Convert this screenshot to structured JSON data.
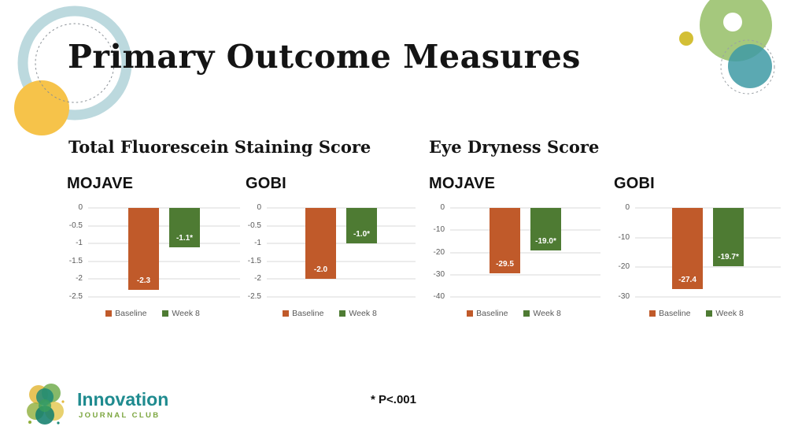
{
  "slide": {
    "title": "Primary Outcome Measures",
    "footnote": "* P<.001"
  },
  "sections": {
    "left_heading": "Total Fluorescein Staining Score",
    "right_heading": "Eye Dryness Score"
  },
  "logo": {
    "name": "Innovation",
    "tagline": "JOURNAL CLUB",
    "name_color": "#1f8b8f",
    "tagline_color": "#7ca63f"
  },
  "colors": {
    "series": [
      "#c05a2a",
      "#4e7b33"
    ],
    "gridline": "#d9d9d9",
    "axis_text": "#595959",
    "decor_ring_blue": "#bcd9de",
    "decor_yellow": "#f6c34a",
    "decor_green": "#a5c87d",
    "decor_teal": "#3e9aa5",
    "decor_olive": "#d3bf35"
  },
  "chart_data": [
    {
      "type": "bar",
      "title": "MOJAVE",
      "section": "Total Fluorescein Staining Score",
      "categories": [
        "Baseline",
        "Week 8"
      ],
      "values": [
        -2.3,
        -1.1
      ],
      "value_labels": [
        "-2.3",
        "-1.1*"
      ],
      "ylim": [
        -2.5,
        0
      ],
      "yticks": [
        0,
        -0.5,
        -1,
        -1.5,
        -2,
        -2.5
      ],
      "ytick_labels": [
        "0",
        "-0.5",
        "-1",
        "-1.5",
        "-2",
        "-2.5"
      ],
      "legend": [
        "Baseline",
        "Week 8"
      ],
      "legend_position": "bottom",
      "grid": true
    },
    {
      "type": "bar",
      "title": "GOBI",
      "section": "Total Fluorescein Staining Score",
      "categories": [
        "Baseline",
        "Week 8"
      ],
      "values": [
        -2.0,
        -1.0
      ],
      "value_labels": [
        "-2.0",
        "-1.0*"
      ],
      "ylim": [
        -2.5,
        0
      ],
      "yticks": [
        0,
        -0.5,
        -1,
        -1.5,
        -2,
        -2.5
      ],
      "ytick_labels": [
        "0",
        "-0.5",
        "-1",
        "-1.5",
        "-2",
        "-2.5"
      ],
      "legend": [
        "Baseline",
        "Week 8"
      ],
      "legend_position": "bottom",
      "grid": true
    },
    {
      "type": "bar",
      "title": "MOJAVE",
      "section": "Eye Dryness Score",
      "categories": [
        "Baseline",
        "Week 8"
      ],
      "values": [
        -29.5,
        -19.0
      ],
      "value_labels": [
        "-29.5",
        "-19.0*"
      ],
      "ylim": [
        -40,
        0
      ],
      "yticks": [
        0,
        -10,
        -20,
        -30,
        -40
      ],
      "ytick_labels": [
        "0",
        "-10",
        "-20",
        "-30",
        "-40"
      ],
      "legend": [
        "Baseline",
        "Week 8"
      ],
      "legend_position": "bottom",
      "grid": true
    },
    {
      "type": "bar",
      "title": "GOBI",
      "section": "Eye Dryness Score",
      "categories": [
        "Baseline",
        "Week 8"
      ],
      "values": [
        -27.4,
        -19.7
      ],
      "value_labels": [
        "-27.4",
        "-19.7*"
      ],
      "ylim": [
        -30,
        0
      ],
      "yticks": [
        0,
        -10,
        -20,
        -30
      ],
      "ytick_labels": [
        "0",
        "-10",
        "-20",
        "-30"
      ],
      "legend": [
        "Baseline",
        "Week 8"
      ],
      "legend_position": "bottom",
      "grid": true
    }
  ]
}
